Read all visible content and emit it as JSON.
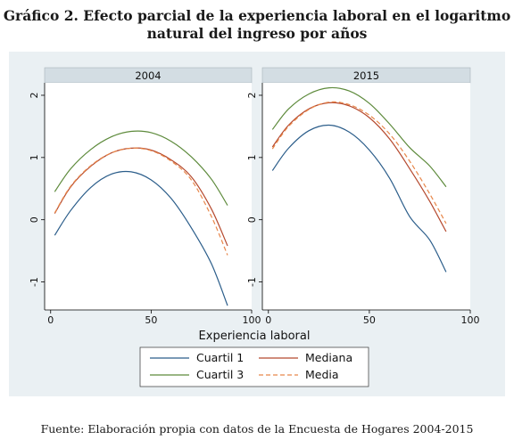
{
  "title_line1": "Gráfico 2. Efecto parcial de la experiencia laboral en el logaritmo",
  "title_line2": "natural del ingreso por años",
  "source": "Fuente: Elaboración propia con datos de la Encuesta de Hogares 2004-2015",
  "colors": {
    "background": "#eaf0f3",
    "panel": "#ffffff",
    "strip": "#d3dde3",
    "cuartil1": "#2b5d8a",
    "cuartil3": "#5d8a3b",
    "mediana": "#b5492e",
    "media": "#e8874a"
  },
  "chart_data": {
    "type": "line",
    "xlabel": "Experiencia laboral",
    "xlim": [
      -3,
      100
    ],
    "ylim": [
      -1.45,
      2.2
    ],
    "xticks": [
      "0",
      "50",
      "100"
    ],
    "xtick_values": [
      0,
      50,
      100
    ],
    "yticks": [
      "-1",
      "0",
      "1",
      "2"
    ],
    "ytick_values": [
      -1,
      0,
      1,
      2
    ],
    "legend_position": "bottom",
    "panels": [
      {
        "label": "2004",
        "x": [
          2,
          10,
          20,
          30,
          40,
          50,
          60,
          70,
          80,
          88
        ],
        "series": [
          {
            "name": "Cuartil 1",
            "style": "solid",
            "values": [
              -0.25,
              0.15,
              0.52,
              0.73,
              0.77,
              0.64,
              0.34,
              -0.13,
              -0.71,
              -1.38
            ]
          },
          {
            "name": "Cuartil 3",
            "style": "solid",
            "values": [
              0.45,
              0.82,
              1.13,
              1.33,
              1.42,
              1.4,
              1.26,
              1.01,
              0.65,
              0.23
            ]
          },
          {
            "name": "Mediana",
            "style": "solid",
            "values": [
              0.1,
              0.53,
              0.86,
              1.07,
              1.15,
              1.12,
              0.96,
              0.69,
              0.17,
              -0.42
            ]
          },
          {
            "name": "Media",
            "style": "dashed",
            "values": [
              0.11,
              0.54,
              0.87,
              1.07,
              1.15,
              1.11,
              0.94,
              0.64,
              0.05,
              -0.57
            ]
          }
        ]
      },
      {
        "label": "2015",
        "x": [
          2,
          10,
          20,
          30,
          40,
          50,
          60,
          70,
          80,
          88
        ],
        "series": [
          {
            "name": "Cuartil 1",
            "style": "solid",
            "values": [
              0.79,
              1.15,
              1.43,
              1.52,
              1.41,
              1.12,
              0.67,
              0.05,
              -0.33,
              -0.84
            ]
          },
          {
            "name": "Cuartil 3",
            "style": "solid",
            "values": [
              1.45,
              1.78,
              2.02,
              2.12,
              2.07,
              1.87,
              1.54,
              1.16,
              0.86,
              0.53
            ]
          },
          {
            "name": "Mediana",
            "style": "solid",
            "values": [
              1.17,
              1.52,
              1.78,
              1.88,
              1.83,
              1.64,
              1.3,
              0.82,
              0.29,
              -0.19
            ]
          },
          {
            "name": "Media",
            "style": "dashed",
            "values": [
              1.14,
              1.5,
              1.77,
              1.89,
              1.85,
              1.68,
              1.38,
              0.94,
              0.41,
              -0.06
            ]
          }
        ]
      }
    ],
    "legend": [
      {
        "name": "Cuartil 1"
      },
      {
        "name": "Mediana"
      },
      {
        "name": "Cuartil 3"
      },
      {
        "name": "Media"
      }
    ]
  }
}
